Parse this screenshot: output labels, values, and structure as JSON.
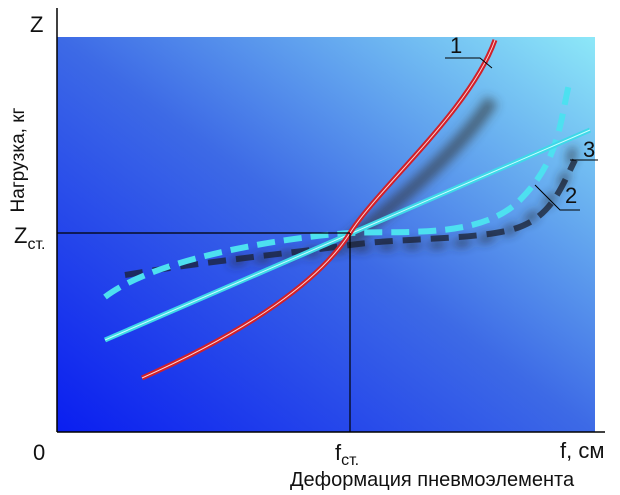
{
  "axes": {
    "y_title": "Z",
    "y_label": "Нагрузка, кг",
    "y_mark": "Z",
    "y_mark_sub": "ст.",
    "origin": "0",
    "x_mark": "f",
    "x_mark_sub": "ст.",
    "x_title": "f, см",
    "x_label": "Деформация пневмоэлемента"
  },
  "curves": [
    {
      "label": "1"
    },
    {
      "label": "2"
    },
    {
      "label": "3"
    }
  ]
}
